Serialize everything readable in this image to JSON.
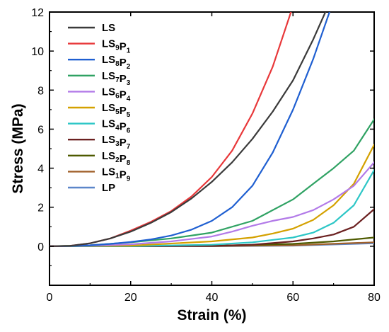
{
  "chart_data": {
    "type": "line",
    "title": "",
    "xlabel": "Strain (%)",
    "ylabel": "Stress (MPa)",
    "xlim": [
      0,
      80
    ],
    "ylim": [
      -2,
      12
    ],
    "xticks": [
      0,
      20,
      40,
      60,
      80
    ],
    "yticks": [
      0,
      2,
      4,
      6,
      8,
      10,
      12
    ],
    "grid": false,
    "legend_position": "top-left",
    "series": [
      {
        "name": "LS",
        "label_parts": [
          [
            "LS",
            ""
          ]
        ],
        "color": "#3a3a3a",
        "x": [
          0,
          5,
          10,
          15,
          20,
          25,
          30,
          35,
          40,
          45,
          50,
          55,
          60,
          65,
          68
        ],
        "y": [
          0,
          0.02,
          0.15,
          0.4,
          0.75,
          1.2,
          1.75,
          2.45,
          3.3,
          4.3,
          5.5,
          6.9,
          8.5,
          10.6,
          12
        ]
      },
      {
        "name": "LS9P1",
        "label_parts": [
          [
            "LS",
            "9"
          ],
          [
            "P",
            "1"
          ]
        ],
        "color": "#e8383a",
        "x": [
          0,
          5,
          10,
          15,
          20,
          25,
          30,
          35,
          40,
          45,
          50,
          55,
          59.5
        ],
        "y": [
          0,
          0.02,
          0.15,
          0.4,
          0.8,
          1.25,
          1.8,
          2.55,
          3.55,
          4.9,
          6.8,
          9.2,
          12
        ]
      },
      {
        "name": "LS8P2",
        "label_parts": [
          [
            "LS",
            "8"
          ],
          [
            "P",
            "2"
          ]
        ],
        "color": "#1f5fd1",
        "x": [
          0,
          5,
          10,
          15,
          20,
          25,
          30,
          35,
          40,
          45,
          50,
          55,
          60,
          65,
          69
        ],
        "y": [
          0,
          0.01,
          0.05,
          0.12,
          0.22,
          0.35,
          0.55,
          0.85,
          1.3,
          2.0,
          3.1,
          4.8,
          7.0,
          9.6,
          12
        ]
      },
      {
        "name": "LS7P3",
        "label_parts": [
          [
            "LS",
            "7"
          ],
          [
            "P",
            "3"
          ]
        ],
        "color": "#2fa263",
        "x": [
          0,
          10,
          20,
          30,
          40,
          50,
          60,
          65,
          70,
          75,
          80
        ],
        "y": [
          0,
          0.05,
          0.2,
          0.4,
          0.7,
          1.3,
          2.4,
          3.2,
          4.0,
          4.9,
          6.5
        ]
      },
      {
        "name": "LS6P4",
        "label_parts": [
          [
            "LS",
            "6"
          ],
          [
            "P",
            "4"
          ]
        ],
        "color": "#b27ae8",
        "x": [
          0,
          10,
          20,
          30,
          40,
          45,
          50,
          55,
          60,
          65,
          70,
          75,
          80
        ],
        "y": [
          0,
          0.03,
          0.1,
          0.25,
          0.5,
          0.75,
          1.05,
          1.3,
          1.5,
          1.85,
          2.4,
          3.1,
          4.3
        ]
      },
      {
        "name": "LS5P5",
        "label_parts": [
          [
            "LS",
            "5"
          ],
          [
            "P",
            "5"
          ]
        ],
        "color": "#d4a100",
        "x": [
          0,
          20,
          40,
          50,
          55,
          60,
          65,
          70,
          75,
          80
        ],
        "y": [
          0,
          0.03,
          0.25,
          0.45,
          0.65,
          0.9,
          1.35,
          2.1,
          3.2,
          5.2
        ]
      },
      {
        "name": "LS4P6",
        "label_parts": [
          [
            "LS",
            "4"
          ],
          [
            "P",
            "6"
          ]
        ],
        "color": "#2cc6c6",
        "x": [
          0,
          20,
          40,
          50,
          60,
          65,
          70,
          75,
          80
        ],
        "y": [
          0,
          0.01,
          0.08,
          0.2,
          0.45,
          0.7,
          1.2,
          2.1,
          3.9
        ]
      },
      {
        "name": "LS3P7",
        "label_parts": [
          [
            "LS",
            "3"
          ],
          [
            "P",
            "7"
          ]
        ],
        "color": "#6b2020",
        "x": [
          0,
          40,
          50,
          60,
          65,
          70,
          75,
          80
        ],
        "y": [
          0,
          0.02,
          0.08,
          0.25,
          0.4,
          0.6,
          1.0,
          1.9
        ]
      },
      {
        "name": "LS2P8",
        "label_parts": [
          [
            "LS",
            "2"
          ],
          [
            "P",
            "8"
          ]
        ],
        "color": "#4e5a00",
        "x": [
          0,
          40,
          60,
          70,
          80
        ],
        "y": [
          0,
          0.02,
          0.12,
          0.25,
          0.45
        ]
      },
      {
        "name": "LS1P9",
        "label_parts": [
          [
            "LS",
            "1"
          ],
          [
            "P",
            "9"
          ]
        ],
        "color": "#a0602a",
        "x": [
          0,
          40,
          60,
          80
        ],
        "y": [
          0,
          0.01,
          0.05,
          0.2
        ]
      },
      {
        "name": "LP",
        "label_parts": [
          [
            "LP",
            ""
          ]
        ],
        "color": "#5b86c9",
        "x": [
          0,
          40,
          60,
          80
        ],
        "y": [
          0,
          0.0,
          0.03,
          0.15
        ]
      }
    ]
  }
}
